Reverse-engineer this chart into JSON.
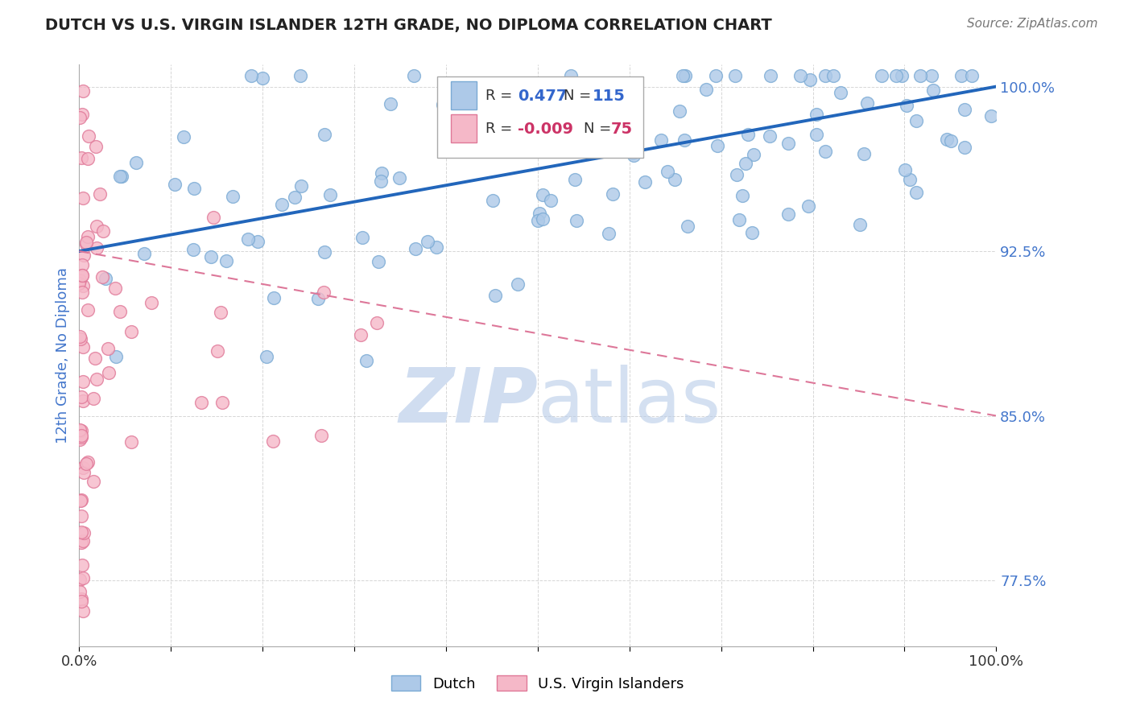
{
  "title": "DUTCH VS U.S. VIRGIN ISLANDER 12TH GRADE, NO DIPLOMA CORRELATION CHART",
  "source": "Source: ZipAtlas.com",
  "ylabel": "12th Grade, No Diploma",
  "xlim": [
    0.0,
    1.0
  ],
  "ylim": [
    0.745,
    1.01
  ],
  "yticks": [
    0.775,
    0.85,
    0.925,
    1.0
  ],
  "ytick_labels": [
    "77.5%",
    "85.0%",
    "92.5%",
    "100.0%"
  ],
  "dutch_R": 0.477,
  "dutch_N": 115,
  "usvi_R": -0.009,
  "usvi_N": 75,
  "dutch_color": "#adc9e8",
  "dutch_edge_color": "#7aaad4",
  "usvi_color": "#f5b8c8",
  "usvi_edge_color": "#e07898",
  "trend_dutch_color": "#2266bb",
  "trend_usvi_color": "#dd7799",
  "background_color": "#ffffff",
  "grid_color": "#cccccc",
  "title_color": "#222222",
  "source_color": "#777777",
  "axis_label_color": "#4477cc",
  "tick_color": "#4477cc",
  "legend_color_dutch": "#3366cc",
  "legend_color_usvi": "#cc3366",
  "watermark_color": "#d0ddf0",
  "dutch_trend_intercept": 0.925,
  "dutch_trend_slope": 0.075,
  "usvi_trend_intercept": 0.925,
  "usvi_trend_slope": -0.075
}
